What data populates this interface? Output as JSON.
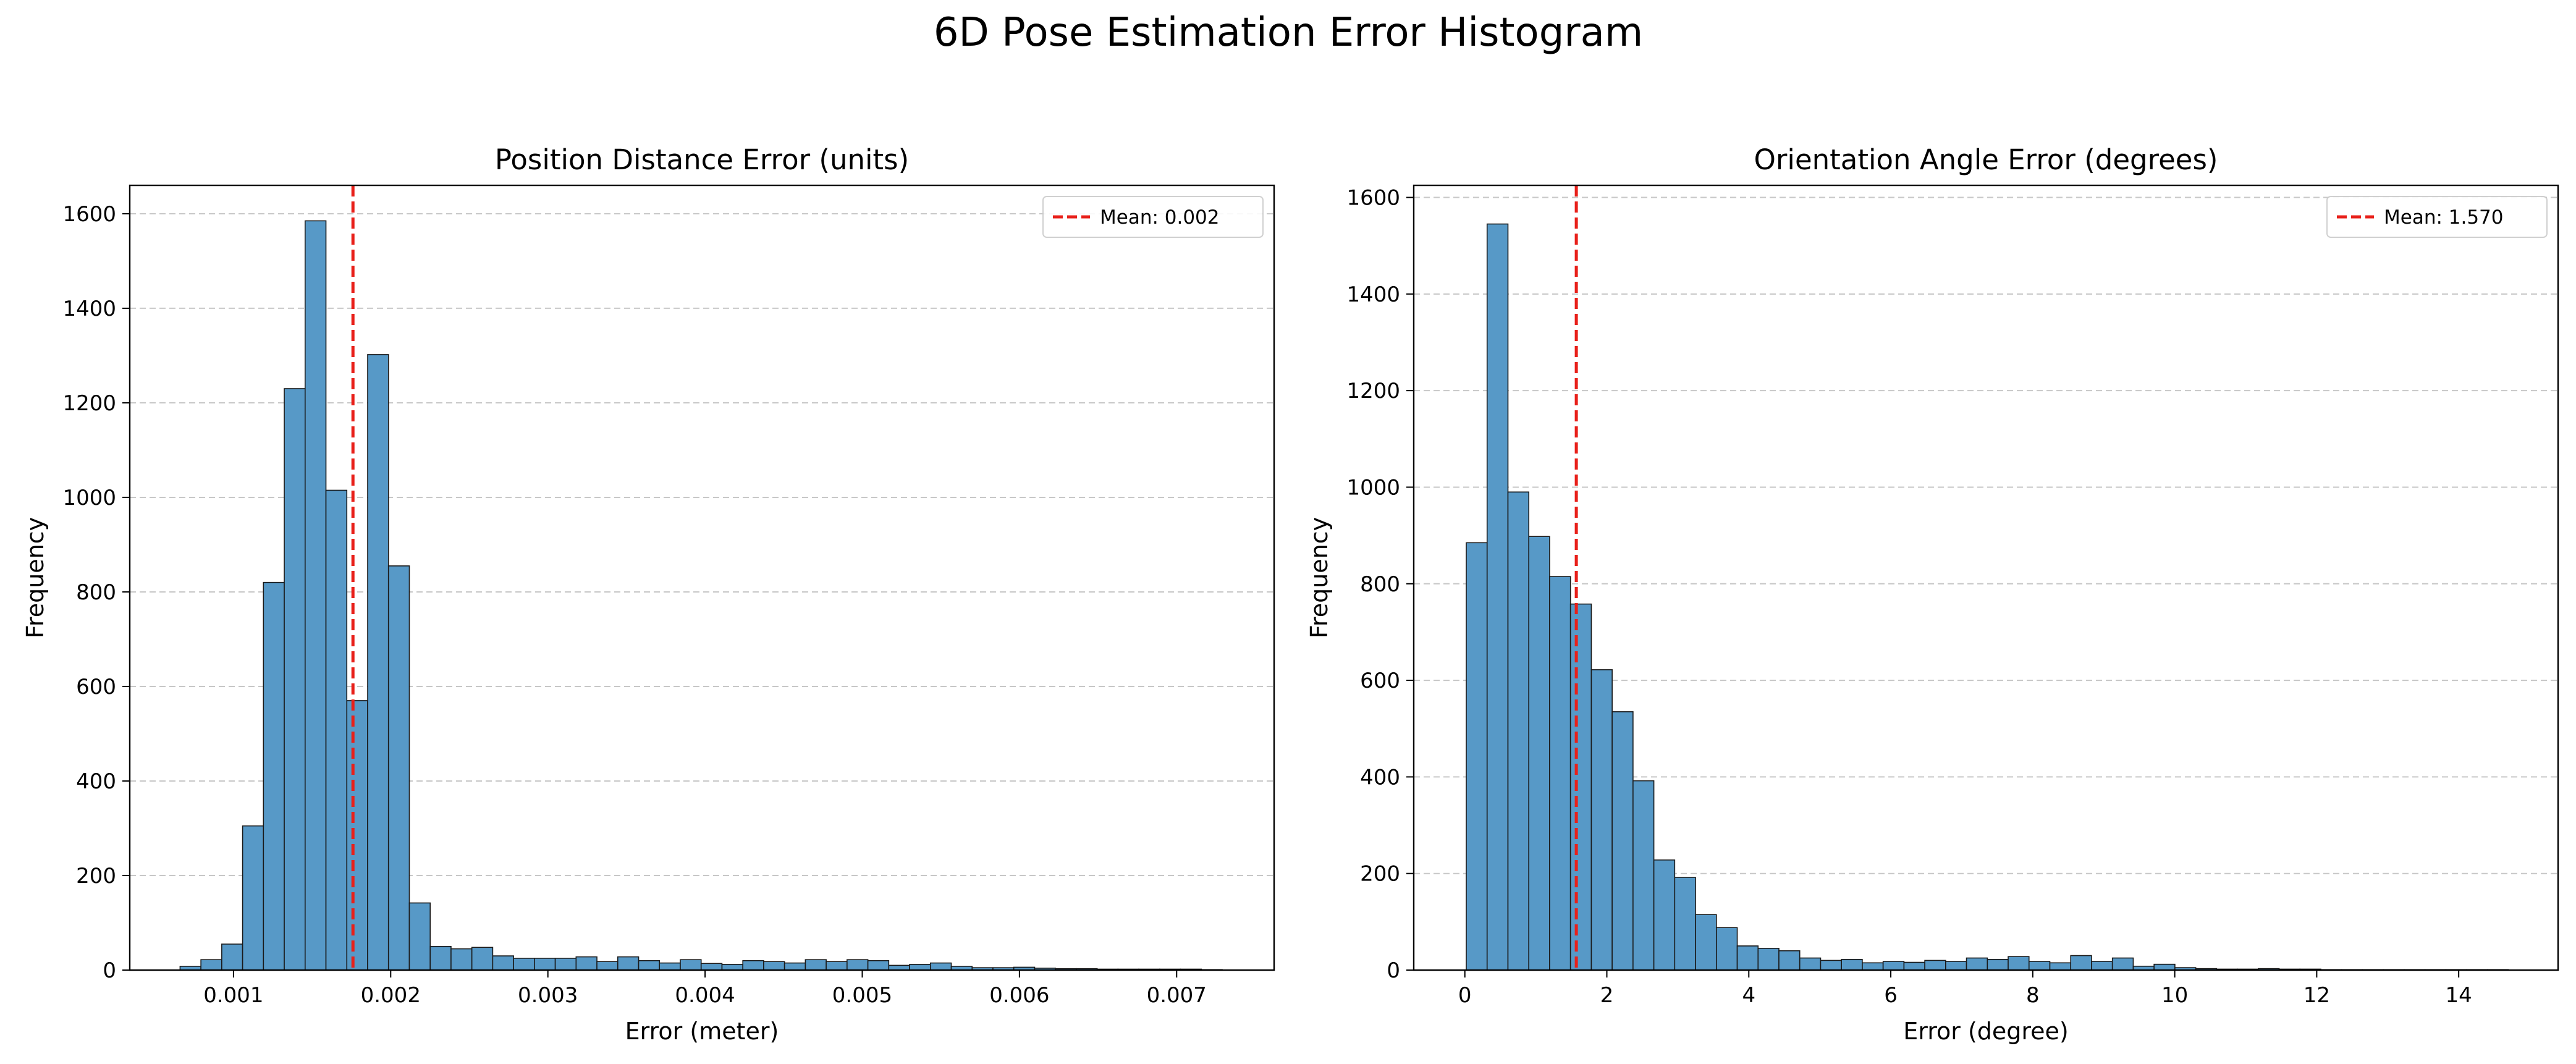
{
  "figure": {
    "title": "6D Pose Estimation Error Histogram"
  },
  "chart_data": [
    {
      "type": "bar",
      "subtype": "histogram",
      "title": "Position Distance Error (units)",
      "xlabel": "Error (meter)",
      "ylabel": "Frequency",
      "xlim": [
        0.00034,
        0.00762
      ],
      "ylim": [
        0,
        1660
      ],
      "xticks": [
        0.001,
        0.002,
        0.003,
        0.004,
        0.005,
        0.006,
        0.007
      ],
      "xtick_labels": [
        "0.001",
        "0.002",
        "0.003",
        "0.004",
        "0.005",
        "0.006",
        "0.007"
      ],
      "yticks": [
        0,
        200,
        400,
        600,
        800,
        1000,
        1200,
        1400,
        1600
      ],
      "ytick_labels": [
        "0",
        "200",
        "400",
        "600",
        "800",
        "1000",
        "1200",
        "1400",
        "1600"
      ],
      "grid": "y-dashed",
      "bin_start": 0.00066,
      "bin_width": 0.0001326,
      "values": [
        8,
        22,
        55,
        305,
        820,
        1230,
        1585,
        1015,
        570,
        1302,
        855,
        142,
        50,
        45,
        48,
        30,
        25,
        25,
        25,
        28,
        18,
        28,
        20,
        15,
        22,
        14,
        12,
        20,
        18,
        15,
        22,
        18,
        22,
        20,
        10,
        12,
        15,
        8,
        5,
        5,
        6,
        4,
        3,
        3,
        2,
        2,
        2,
        2,
        2,
        1
      ],
      "bar_color": "#5799c7",
      "mean_line": {
        "x": 0.00176,
        "label": "Mean: 0.002",
        "color": "#e8201a"
      },
      "legend_position": "top-right"
    },
    {
      "type": "bar",
      "subtype": "histogram",
      "title": "Orientation Angle Error (degrees)",
      "xlabel": "Error (degree)",
      "ylabel": "Frequency",
      "xlim": [
        -0.72,
        15.4
      ],
      "ylim": [
        0,
        1625
      ],
      "xticks": [
        0,
        2,
        4,
        6,
        8,
        10,
        12,
        14
      ],
      "xtick_labels": [
        "0",
        "2",
        "4",
        "6",
        "8",
        "10",
        "12",
        "14"
      ],
      "yticks": [
        0,
        200,
        400,
        600,
        800,
        1000,
        1200,
        1400,
        1600
      ],
      "ytick_labels": [
        "0",
        "200",
        "400",
        "600",
        "800",
        "1000",
        "1200",
        "1400",
        "1600"
      ],
      "grid": "y-dashed",
      "bin_start": 0.02,
      "bin_width": 0.2936,
      "values": [
        885,
        1545,
        990,
        898,
        815,
        758,
        622,
        535,
        392,
        228,
        192,
        115,
        88,
        50,
        45,
        40,
        25,
        20,
        22,
        15,
        18,
        16,
        20,
        18,
        25,
        22,
        28,
        18,
        15,
        30,
        18,
        25,
        8,
        12,
        5,
        3,
        2,
        2,
        3,
        2,
        2,
        1,
        1,
        1,
        1,
        1,
        1,
        1,
        1,
        1
      ],
      "bar_color": "#5799c7",
      "mean_line": {
        "x": 1.57,
        "label": "Mean: 1.570",
        "color": "#e8201a"
      },
      "legend_position": "top-right"
    }
  ]
}
